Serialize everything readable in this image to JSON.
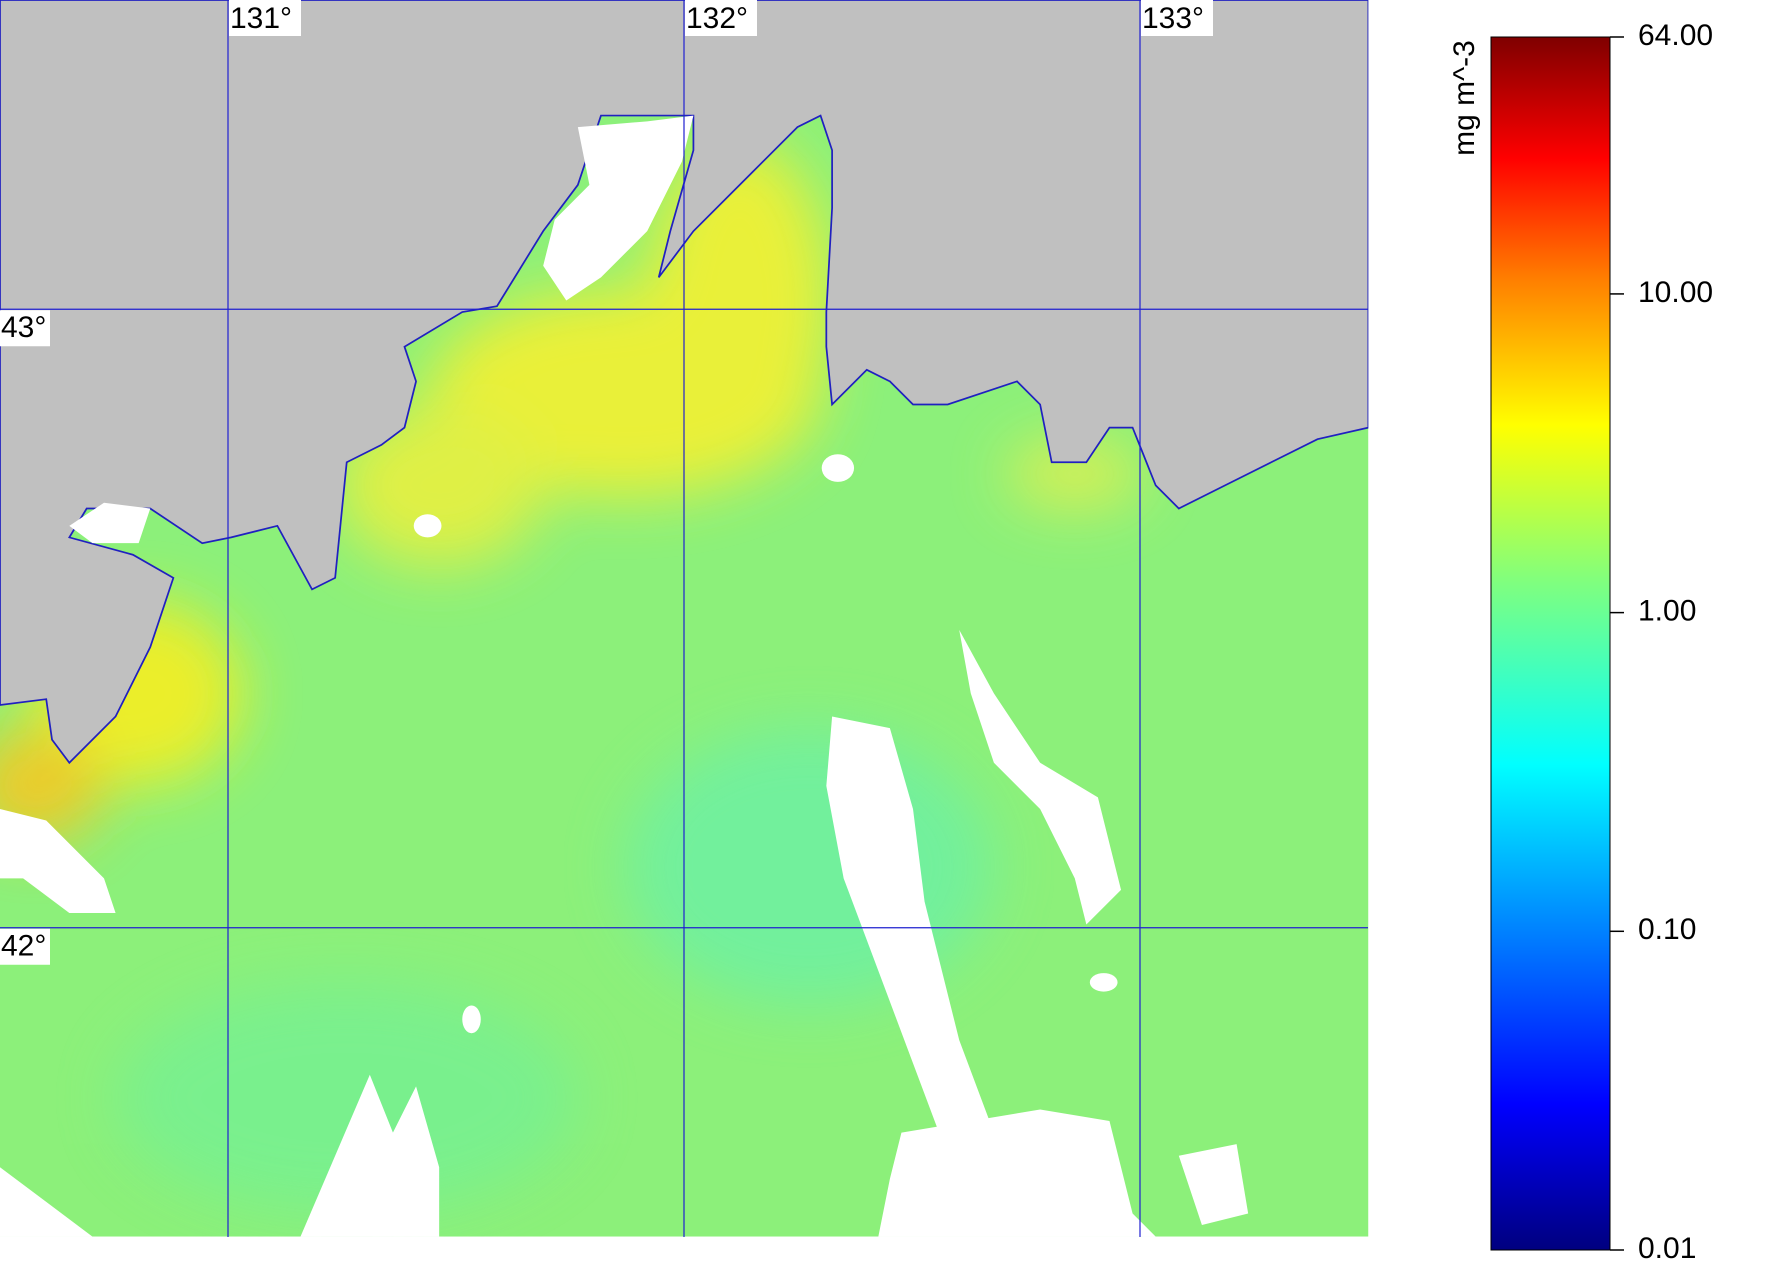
{
  "map": {
    "xlim": [
      130.5,
      133.5
    ],
    "ylim": [
      41.5,
      43.5
    ],
    "xticks": [
      {
        "value": 131,
        "label": "131°"
      },
      {
        "value": 132,
        "label": "132°"
      },
      {
        "value": 133,
        "label": "133°"
      }
    ],
    "yticks": [
      {
        "value": 43,
        "label": "43°"
      },
      {
        "value": 42,
        "label": "42°"
      }
    ]
  },
  "colorbar": {
    "label": "mg m^-3",
    "log": true,
    "lim": [
      0.01,
      64
    ],
    "ticks": [
      {
        "value": 64,
        "label": "64.00"
      },
      {
        "value": 10,
        "label": "10.00"
      },
      {
        "value": 1,
        "label": "1.00"
      },
      {
        "value": 0.1,
        "label": "0.10"
      },
      {
        "value": 0.01,
        "label": "0.01"
      }
    ]
  }
}
